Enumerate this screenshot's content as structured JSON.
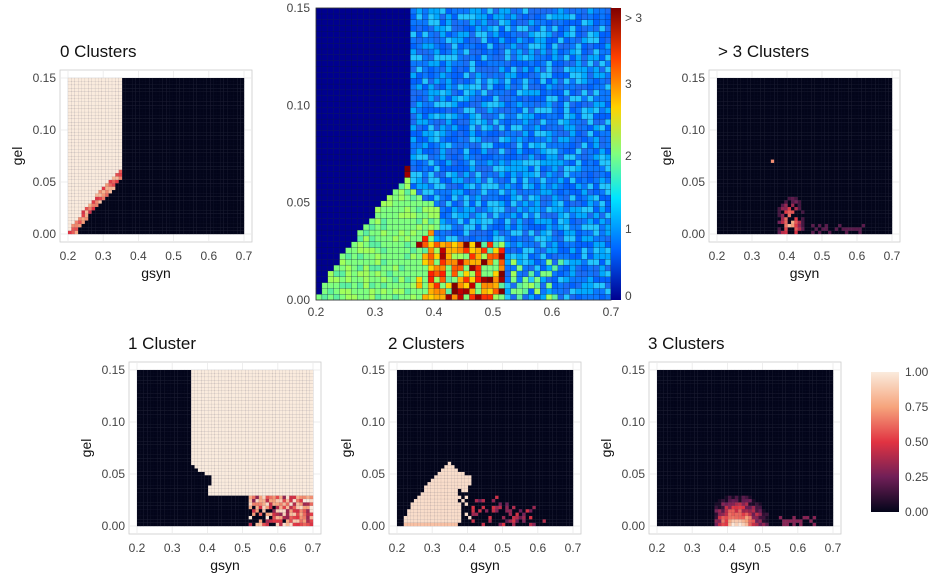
{
  "chart_data": [
    {
      "id": "zero",
      "type": "heatmap",
      "title": "0 Clusters",
      "xlabel": "gsyn",
      "ylabel": "gel",
      "xlim": [
        0.2,
        0.7
      ],
      "ylim": [
        0,
        0.15
      ],
      "xticks": [
        "0.2",
        "0.3",
        "0.4",
        "0.5",
        "0.6",
        "0.7"
      ],
      "yticks": [
        "0.00",
        "0.05",
        "0.10",
        "0.15"
      ],
      "colorscale": "fraction 0-1 (dark to cream)",
      "region_summary": [
        {
          "region": "gsyn 0.2-0.35, gel above onset curve",
          "value": 1.0
        },
        {
          "region": "gsyn > 0.35",
          "value": 0.0
        },
        {
          "region": "onset curve gel from 0.0 at gsyn 0.2 to 0.065 at gsyn 0.36",
          "value": 0.6
        }
      ]
    },
    {
      "id": "main",
      "type": "heatmap",
      "title": "",
      "xlabel": "",
      "ylabel": "",
      "xlim": [
        0.2,
        0.7
      ],
      "ylim": [
        0,
        0.15
      ],
      "xticks": [
        "0.2",
        "0.3",
        "0.4",
        "0.5",
        "0.6",
        "0.7"
      ],
      "yticks": [
        "0.00",
        "0.05",
        "0.10",
        "0.15"
      ],
      "colorbar_ticks": [
        "0",
        "1",
        "2",
        "3",
        "> 3"
      ],
      "colorscale": "number of clusters (jet)",
      "region_summary": [
        {
          "region": "gsyn 0.2-0.35 above onset",
          "value": 0
        },
        {
          "region": "gsyn > 0.35 upper",
          "value": 1
        },
        {
          "region": "triangle below onset, gsyn 0.22-0.42",
          "value": 2
        },
        {
          "region": "gsyn 0.4-0.5, gel 0-0.03",
          "value": 3
        },
        {
          "region": "scattered near gsyn 0.4, gel 0.01-0.035",
          "value": 4
        }
      ]
    },
    {
      "id": "gt3",
      "type": "heatmap",
      "title": "> 3 Clusters",
      "xlabel": "gsyn",
      "ylabel": "gel",
      "xlim": [
        0.2,
        0.7
      ],
      "ylim": [
        0,
        0.15
      ],
      "xticks": [
        "0.2",
        "0.3",
        "0.4",
        "0.5",
        "0.6",
        "0.7"
      ],
      "yticks": [
        "0.00",
        "0.05",
        "0.10",
        "0.15"
      ],
      "colorscale": "fraction 0-1 (dark to cream)",
      "region_summary": [
        {
          "region": "most of domain",
          "value": 0.0
        },
        {
          "region": "spike near gsyn 0.39-0.43, gel 0.0-0.035",
          "value": 0.4
        }
      ]
    },
    {
      "id": "one",
      "type": "heatmap",
      "title": "1 Cluster",
      "xlabel": "gsyn",
      "ylabel": "gel",
      "xlim": [
        0.2,
        0.7
      ],
      "ylim": [
        0,
        0.15
      ],
      "xticks": [
        "0.2",
        "0.3",
        "0.4",
        "0.5",
        "0.6",
        "0.7"
      ],
      "yticks": [
        "0.00",
        "0.05",
        "0.10",
        "0.15"
      ],
      "colorscale": "fraction 0-1 (dark to cream)",
      "region_summary": [
        {
          "region": "gsyn > 0.35, gel above boundary",
          "value": 1.0
        },
        {
          "region": "gsyn < 0.35",
          "value": 0.0
        },
        {
          "region": "transition band near boundary, gsyn 0.4-0.6, gel 0-0.03",
          "value": 0.5
        }
      ]
    },
    {
      "id": "two",
      "type": "heatmap",
      "title": "2 Clusters",
      "xlabel": "gsyn",
      "ylabel": "gel",
      "xlim": [
        0.2,
        0.7
      ],
      "ylim": [
        0,
        0.15
      ],
      "xticks": [
        "0.2",
        "0.3",
        "0.4",
        "0.5",
        "0.6",
        "0.7"
      ],
      "yticks": [
        "0.00",
        "0.05",
        "0.10",
        "0.15"
      ],
      "colorscale": "fraction 0-1 (dark to cream)",
      "region_summary": [
        {
          "region": "wedge gsyn 0.22-0.38, gel 0-0.06",
          "value": 1.0
        },
        {
          "region": "elsewhere",
          "value": 0.0
        }
      ]
    },
    {
      "id": "three",
      "type": "heatmap",
      "title": "3 Clusters",
      "xlabel": "gsyn",
      "ylabel": "gel",
      "xlim": [
        0.2,
        0.7
      ],
      "ylim": [
        0,
        0.15
      ],
      "xticks": [
        "0.2",
        "0.3",
        "0.4",
        "0.5",
        "0.6",
        "0.7"
      ],
      "yticks": [
        "0.00",
        "0.05",
        "0.10",
        "0.15"
      ],
      "colorscale": "fraction 0-1 (dark to cream)",
      "region_summary": [
        {
          "region": "blob around gsyn 0.38-0.5, gel 0-0.03",
          "value": 0.8
        },
        {
          "region": "elsewhere",
          "value": 0.0
        }
      ]
    }
  ],
  "legend": {
    "ticks": [
      "1.00",
      "0.75",
      "0.50",
      "0.25",
      "0.00"
    ],
    "colors": [
      "#faebdd",
      "#f6a47c",
      "#e13342",
      "#701f57",
      "#03051a"
    ]
  },
  "palette": {
    "jet": [
      "#00008f",
      "#0062ff",
      "#00e5ff",
      "#7fff7f",
      "#ffd200",
      "#ff4000",
      "#800000"
    ],
    "dark": "#03051a",
    "cream": "#faebdd",
    "grid": "#2a2e4a",
    "panel_grid": "#e9e9e9",
    "frame": "#cccccc"
  }
}
